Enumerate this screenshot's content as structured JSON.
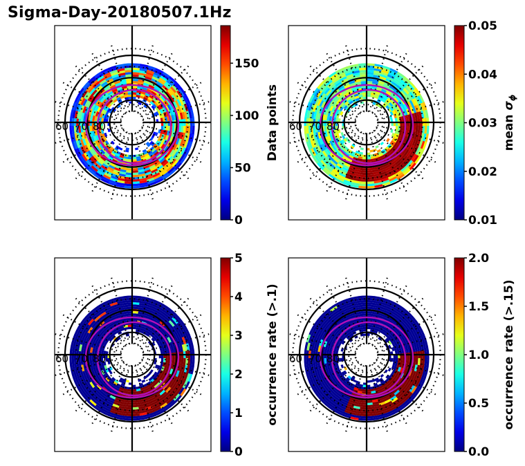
{
  "figure": {
    "title": "Sigma-Day-20180507.1Hz"
  },
  "chart_data": [
    {
      "type": "heatmap",
      "projection": "polar (magnetic latitude / MLT)",
      "title": "",
      "colormap": "jet",
      "colorbar": {
        "label": "Data points",
        "label_math": null,
        "range": [
          0,
          186
        ],
        "ticks": [
          0,
          50,
          100,
          150
        ],
        "tick_labels": [
          "0",
          "50",
          "100",
          "150"
        ]
      },
      "latitude_labels": [
        "60",
        "70",
        "80"
      ],
      "latitude_rings_solid": [
        60,
        70,
        80
      ],
      "profile": "counts"
    },
    {
      "type": "heatmap",
      "projection": "polar (magnetic latitude / MLT)",
      "title": "",
      "colormap": "jet",
      "colorbar": {
        "label": "mean σ",
        "label_sub": "ϕ",
        "range": [
          0.01,
          0.05
        ],
        "ticks": [
          0.01,
          0.02,
          0.03,
          0.04,
          0.05
        ],
        "tick_labels": [
          "0.01",
          "0.02",
          "0.03",
          "0.04",
          "0.05"
        ]
      },
      "latitude_labels": [
        "60",
        "70",
        "80"
      ],
      "latitude_rings_solid": [
        60,
        70,
        80
      ],
      "profile": "mean"
    },
    {
      "type": "heatmap",
      "projection": "polar (magnetic latitude / MLT)",
      "title": "",
      "colormap": "jet",
      "colorbar": {
        "label": "occurrence rate (>.1)",
        "range": [
          0,
          5
        ],
        "ticks": [
          0,
          1,
          2,
          3,
          4,
          5
        ],
        "tick_labels": [
          "0",
          "1",
          "2",
          "3",
          "4",
          "5"
        ]
      },
      "latitude_labels": [
        "60",
        "70",
        "80"
      ],
      "latitude_rings_solid": [
        60,
        70,
        80
      ],
      "profile": "occ1"
    },
    {
      "type": "heatmap",
      "projection": "polar (magnetic latitude / MLT)",
      "title": "",
      "colormap": "jet",
      "colorbar": {
        "label": "occurrence rate (>.15)",
        "range": [
          0.0,
          2.0
        ],
        "ticks": [
          0.0,
          0.5,
          1.0,
          1.5,
          2.0
        ],
        "tick_labels": [
          "0.0",
          "0.5",
          "1.0",
          "1.5",
          "2.0"
        ]
      },
      "latitude_labels": [
        "60",
        "70",
        "80"
      ],
      "latitude_rings_solid": [
        60,
        70,
        80
      ],
      "profile": "occ2"
    }
  ],
  "overlay": {
    "auroral_oval_color": "#b010b8",
    "grid_color": "#000000"
  }
}
